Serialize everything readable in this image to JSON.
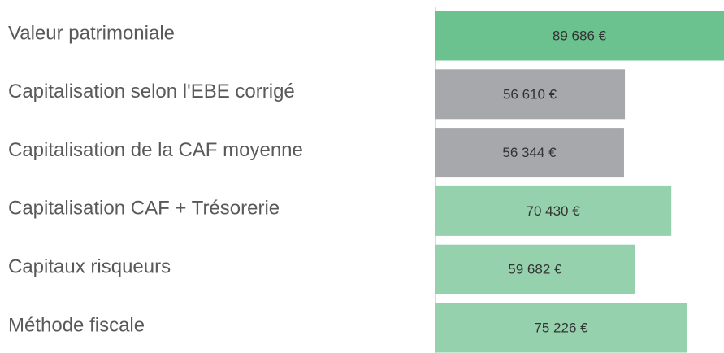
{
  "chart_data": {
    "type": "barh",
    "categories": [
      "Valeur patrimoniale",
      "Capitalisation selon l'EBE corrigé",
      "Capitalisation de la CAF moyenne",
      "Capitalisation CAF + Trésorerie",
      "Capitaux risqueurs",
      "Méthode fiscale"
    ],
    "values": [
      89686,
      56610,
      56344,
      70430,
      59682,
      75226
    ],
    "value_labels": [
      "89 686 €",
      "56 610 €",
      "56 344 €",
      "70 430 €",
      "59 682 €",
      "75 226 €"
    ],
    "colors": [
      "#6cc28e",
      "#a6a8ab",
      "#a6a8ab",
      "#96d1ad",
      "#96d1ad",
      "#96d1ad"
    ],
    "xlim": [
      0,
      86100
    ]
  }
}
